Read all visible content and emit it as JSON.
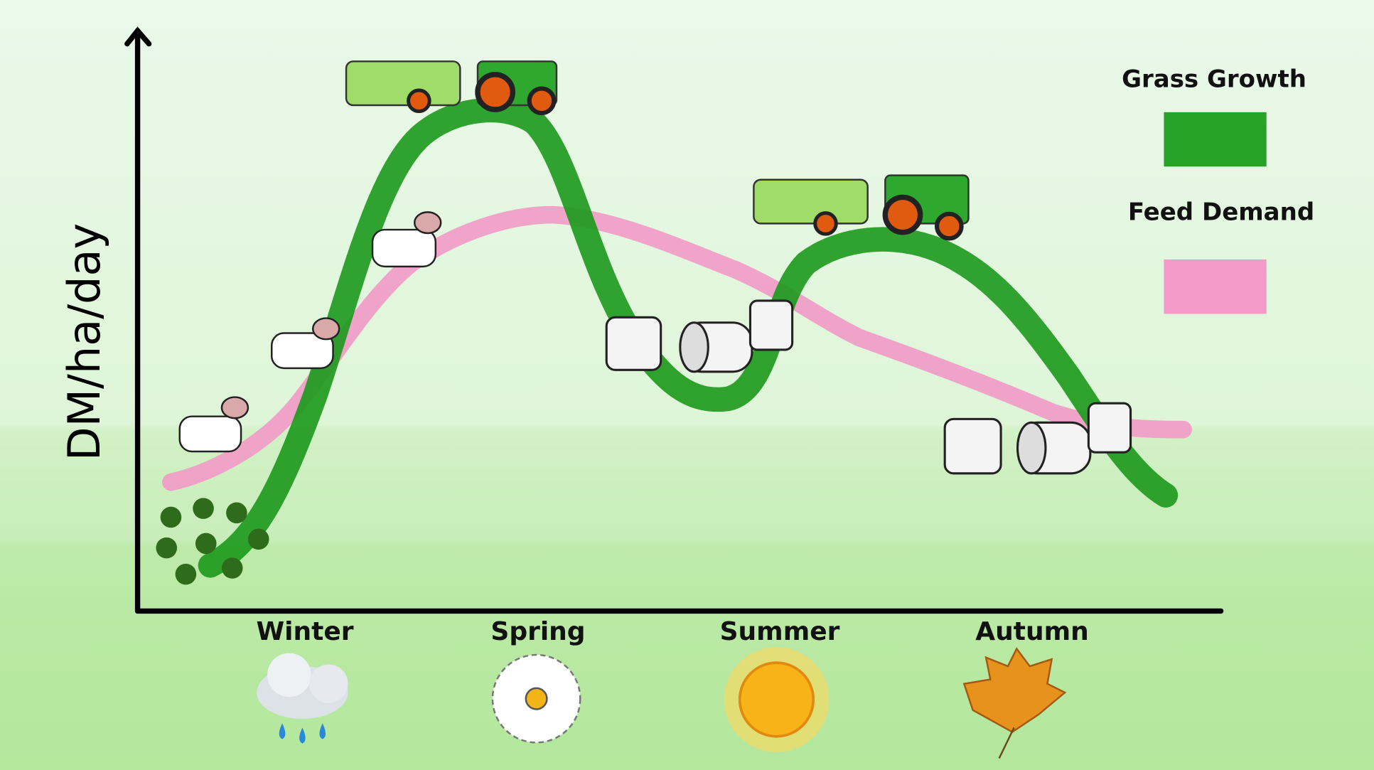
{
  "y_axis_label": "DM/ha/day",
  "seasons": [
    "Winter",
    "Spring",
    "Summer",
    "Autumn"
  ],
  "legend": [
    "Grass Growth",
    "Feed Demand"
  ]
}
